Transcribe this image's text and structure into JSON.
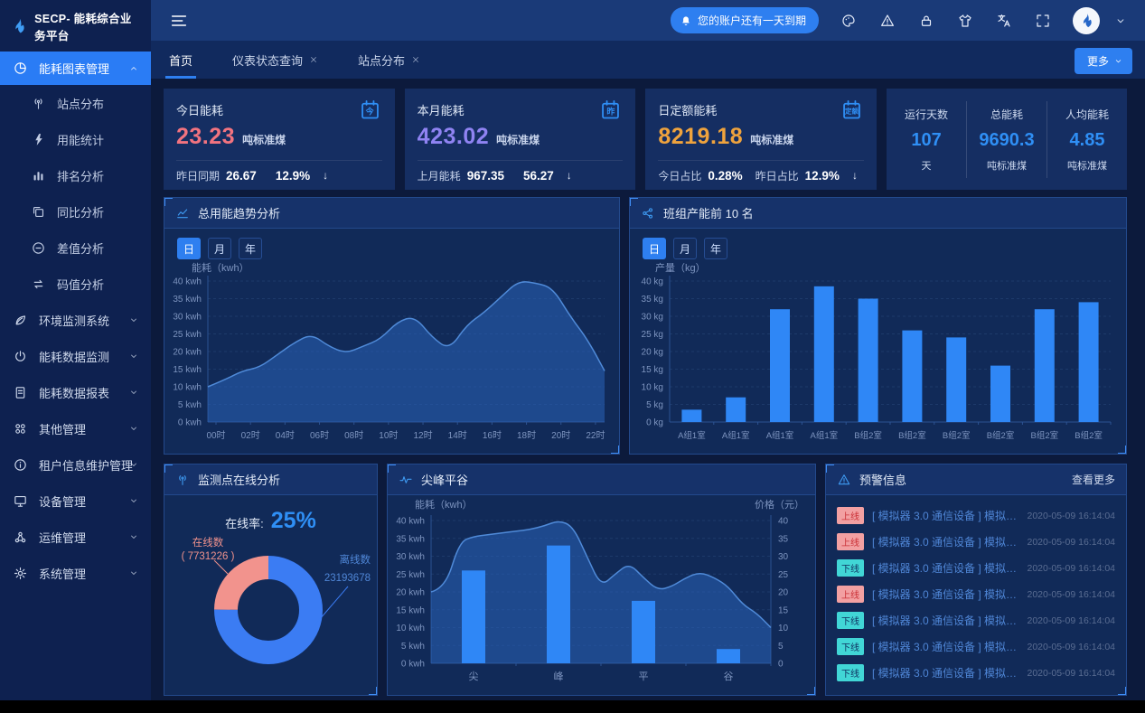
{
  "app": {
    "title": "SECP- 能耗综合业务平台"
  },
  "header": {
    "notice": "您的账户还有一天到期",
    "icons": [
      "palette",
      "warning",
      "lock",
      "shirt",
      "translate",
      "fullscreen"
    ]
  },
  "tabbar": {
    "tabs": [
      {
        "label": "首页",
        "closable": false,
        "active": true
      },
      {
        "label": "仪表状态查询",
        "closable": true,
        "active": false
      },
      {
        "label": "站点分布",
        "closable": true,
        "active": false
      }
    ],
    "more": "更多"
  },
  "sidebar": {
    "groups": [
      {
        "label": "能耗图表管理",
        "icon": "pie",
        "active": true,
        "expanded": true,
        "children": [
          {
            "label": "站点分布",
            "icon": "antenna"
          },
          {
            "label": "用能统计",
            "icon": "bolt"
          },
          {
            "label": "排名分析",
            "icon": "bars"
          },
          {
            "label": "同比分析",
            "icon": "copy"
          },
          {
            "label": "差值分析",
            "icon": "minus"
          },
          {
            "label": "码值分析",
            "icon": "swap"
          }
        ]
      },
      {
        "label": "环境监测系统",
        "icon": "leaf",
        "active": false,
        "expanded": false
      },
      {
        "label": "能耗数据监测",
        "icon": "power",
        "active": false,
        "expanded": false
      },
      {
        "label": "能耗数据报表",
        "icon": "doc",
        "active": false,
        "expanded": false
      },
      {
        "label": "其他管理",
        "icon": "grid",
        "active": false,
        "expanded": false
      },
      {
        "label": "租户信息维护管理",
        "icon": "info",
        "active": false,
        "expanded": false
      },
      {
        "label": "设备管理",
        "icon": "monitor",
        "active": false,
        "expanded": false
      },
      {
        "label": "运维管理",
        "icon": "nodes",
        "active": false,
        "expanded": false
      },
      {
        "label": "系统管理",
        "icon": "gear",
        "active": false,
        "expanded": false
      }
    ]
  },
  "stat_cards": [
    {
      "title": "今日能耗",
      "icon_char": "今",
      "value": "23.23",
      "unit": "吨标准煤",
      "value_color": "#f2737f",
      "footer": [
        {
          "label": "昨日同期",
          "value": "26.67"
        },
        {
          "label": "",
          "value": "12.9%"
        }
      ],
      "arrow": "down"
    },
    {
      "title": "本月能耗",
      "icon_char": "昨",
      "value": "423.02",
      "unit": "吨标准煤",
      "value_color": "#8f83f2",
      "footer": [
        {
          "label": "上月能耗",
          "value": "967.35"
        },
        {
          "label": "",
          "value": "56.27"
        }
      ],
      "arrow": "down"
    },
    {
      "title": "日定额能耗",
      "icon_char": "定额",
      "value": "8219.18",
      "unit": "吨标准煤",
      "value_color": "#efa33d",
      "footer": [
        {
          "label": "今日占比",
          "value": "0.28%"
        },
        {
          "label": "昨日占比",
          "value": "12.9%"
        }
      ],
      "arrow": "down"
    }
  ],
  "summary": [
    {
      "label": "运行天数",
      "value": "107",
      "unit": "天"
    },
    {
      "label": "总能耗",
      "value": "9690.3",
      "unit": "吨标准煤"
    },
    {
      "label": "人均能耗",
      "value": "4.85",
      "unit": "吨标准煤"
    }
  ],
  "chart_data": [
    {
      "id": "trend",
      "type": "area",
      "title": "总用能趋势分析",
      "tabs": [
        "日",
        "月",
        "年"
      ],
      "active_tab": "日",
      "ylabel": "能耗（kwh）",
      "y_unit": "kwh",
      "ylim": [
        0,
        40
      ],
      "y_step": 5,
      "x_labels": [
        "00时",
        "02时",
        "04时",
        "06时",
        "08时",
        "10时",
        "12时",
        "14时",
        "16时",
        "18时",
        "20时",
        "22时"
      ],
      "values": [
        10,
        12,
        14.5,
        15.5,
        19,
        22.5,
        25,
        21.5,
        19.5,
        21.5,
        23.5,
        28.5,
        30,
        24,
        20.5,
        27.5,
        31,
        35.5,
        40,
        39.5,
        38,
        30,
        23.5,
        14.5
      ],
      "line_color": "#4f8ad8",
      "fill_color": "rgba(42,98,186,0.55)"
    },
    {
      "id": "teams",
      "type": "bar",
      "title": "班组产能前 10 名",
      "tabs": [
        "日",
        "月",
        "年"
      ],
      "active_tab": "日",
      "ylabel": "产量（kg）",
      "y_unit": "kg",
      "ylim": [
        0,
        40
      ],
      "y_step": 5,
      "categories": [
        "A组1室",
        "A组1室",
        "A组1室",
        "A组1室",
        "B组2室",
        "B组2室",
        "B组2室",
        "B组2室",
        "B组2室",
        "B组2室"
      ],
      "values": [
        3.5,
        7,
        32,
        38.5,
        35,
        26,
        24,
        16,
        32,
        34
      ],
      "bar_color": "#2f87f6"
    },
    {
      "id": "online",
      "type": "pie",
      "title": "监测点在线分析",
      "rate_label": "在线率:",
      "rate_value": "25%",
      "slices": [
        {
          "name": "在线数",
          "value": 7731226,
          "display": "( 7731226 )",
          "color": "#f2938d"
        },
        {
          "name": "离线数",
          "value": 23193678,
          "display": "23193678",
          "color": "#3b7cf3"
        }
      ]
    },
    {
      "id": "peak",
      "type": "combo",
      "title": "尖峰平谷",
      "ylabel_left": "能耗（kwh）",
      "ylabel_right": "价格（元）",
      "y_unit": "kwh",
      "ylim": [
        0,
        40
      ],
      "y_step": 5,
      "categories": [
        "尖",
        "峰",
        "平",
        "谷"
      ],
      "bar_values": [
        26,
        33,
        17.5,
        4
      ],
      "line_values": [
        20,
        21,
        34,
        35.5,
        36,
        36.5,
        37,
        37.5,
        38.5,
        40,
        38.5,
        30,
        21.5,
        25,
        28,
        24,
        20.5,
        21.5,
        24,
        25.5,
        24,
        21.5,
        16.5,
        14,
        10
      ],
      "bar_color": "#2f87f6",
      "line_color": "#4f8ad8",
      "fill_color": "rgba(42,98,186,0.55)"
    },
    {
      "id": "alerts",
      "type": "table",
      "title": "预警信息",
      "more_label": "查看更多",
      "rows": [
        {
          "status": "上线",
          "message": "[ 模拟器 3.0 通信设备 ] 模拟器 3.0...",
          "time": "2020-05-09 16:14:04"
        },
        {
          "status": "上线",
          "message": "[ 模拟器 3.0 通信设备 ] 模拟器 3.0...",
          "time": "2020-05-09 16:14:04"
        },
        {
          "status": "下线",
          "message": "[ 模拟器 3.0 通信设备 ] 模拟器 3.0...",
          "time": "2020-05-09 16:14:04"
        },
        {
          "status": "上线",
          "message": "[ 模拟器 3.0 通信设备 ] 模拟器 3.0...",
          "time": "2020-05-09 16:14:04"
        },
        {
          "status": "下线",
          "message": "[ 模拟器 3.0 通信设备 ] 模拟器 3.0...",
          "time": "2020-05-09 16:14:04"
        },
        {
          "status": "下线",
          "message": "[ 模拟器 3.0 通信设备 ] 模拟器 3.0...",
          "time": "2020-05-09 16:14:04"
        },
        {
          "status": "下线",
          "message": "[ 模拟器 3.0 通信设备 ] 模拟器 3.0...",
          "time": "2020-05-09 16:14:04"
        }
      ]
    }
  ],
  "colors": {
    "accent": "#2e7ff0",
    "online_slice": "#f2938d",
    "offline_slice": "#3b7cf3",
    "badge_online": "#f2a0a2",
    "badge_offline": "#41d6d6"
  }
}
